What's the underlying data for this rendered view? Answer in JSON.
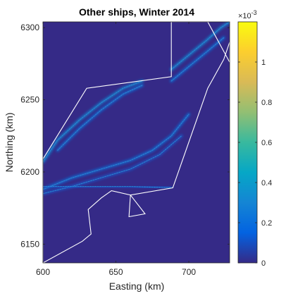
{
  "chart_data": {
    "type": "heatmap",
    "title": "Other ships, Winter 2014",
    "xlabel": "Easting (km)",
    "ylabel": "Northing (km)",
    "xlim": [
      600,
      728
    ],
    "ylim": [
      6137,
      6304
    ],
    "xticks": [
      600,
      650,
      700
    ],
    "yticks": [
      6150,
      6200,
      6250,
      6300
    ],
    "colorbar": {
      "lim": [
        0,
        1.2
      ],
      "ticks": [
        0,
        0.2,
        0.4,
        0.6,
        0.8,
        1
      ],
      "tick_labels": [
        "0",
        "0.2",
        "0.4",
        "0.6",
        "0.8",
        "1"
      ],
      "exponent_label": "×10",
      "exponent": "-3",
      "colormap": "parula"
    },
    "background_color": "#352a87",
    "boundary_color": "#ffffff",
    "boundary": [
      [
        600,
        6137
      ],
      [
        600,
        6209
      ],
      [
        630,
        6258
      ],
      [
        688,
        6266
      ],
      [
        688,
        6304
      ],
      [
        714,
        6304
      ],
      [
        724,
        6278
      ],
      [
        713,
        6258
      ],
      [
        689,
        6189
      ],
      [
        648,
        6184
      ],
      [
        658,
        6180
      ],
      [
        660,
        6169
      ],
      [
        650,
        6187
      ],
      [
        645,
        6183
      ],
      [
        640,
        6176
      ],
      [
        637,
        6156
      ],
      [
        631,
        6156
      ],
      [
        600,
        6137
      ]
    ],
    "boundary_note": "",
    "polygon_outline": [
      [
        600,
        6137
      ],
      [
        600,
        6209
      ],
      [
        630,
        6258
      ],
      [
        688,
        6266
      ],
      [
        688,
        6304
      ],
      [
        713,
        6304
      ],
      [
        728,
        6276
      ],
      [
        728,
        6290
      ],
      [
        724,
        6278
      ],
      [
        713,
        6258
      ],
      [
        689,
        6189
      ],
      [
        660,
        6184
      ],
      [
        659,
        6169
      ],
      [
        670,
        6171
      ],
      [
        660,
        6184
      ],
      [
        647,
        6187
      ],
      [
        640,
        6182
      ],
      [
        631,
        6174
      ],
      [
        633,
        6157
      ],
      [
        627,
        6152
      ],
      [
        600,
        6137
      ]
    ],
    "shipping_lanes": [
      {
        "points": [
          [
            600,
            6207
          ],
          [
            610,
            6222
          ],
          [
            625,
            6236
          ],
          [
            640,
            6248
          ],
          [
            655,
            6258
          ],
          [
            668,
            6263
          ]
        ],
        "density": 0.45
      },
      {
        "points": [
          [
            610,
            6215
          ],
          [
            625,
            6230
          ],
          [
            640,
            6243
          ],
          [
            655,
            6254
          ],
          [
            668,
            6260
          ]
        ],
        "density": 0.3
      },
      {
        "points": [
          [
            688,
            6271
          ],
          [
            700,
            6281
          ],
          [
            712,
            6291
          ],
          [
            722,
            6300
          ],
          [
            728,
            6304
          ]
        ],
        "density": 0.5
      },
      {
        "points": [
          [
            688,
            6263
          ],
          [
            700,
            6273
          ],
          [
            712,
            6283
          ],
          [
            724,
            6293
          ]
        ],
        "density": 0.4
      },
      {
        "points": [
          [
            600,
            6188
          ],
          [
            620,
            6196
          ],
          [
            640,
            6202
          ],
          [
            660,
            6208
          ],
          [
            675,
            6215
          ],
          [
            688,
            6225
          ],
          [
            700,
            6240
          ]
        ],
        "density": 0.3
      },
      {
        "points": [
          [
            600,
            6185
          ],
          [
            620,
            6190
          ],
          [
            640,
            6196
          ],
          [
            660,
            6202
          ],
          [
            680,
            6212
          ],
          [
            695,
            6225
          ]
        ],
        "density": 0.22
      },
      {
        "points": [
          [
            600,
            6190
          ],
          [
            630,
            6190
          ],
          [
            660,
            6190
          ],
          [
            688,
            6189
          ]
        ],
        "density": 0.15
      }
    ]
  }
}
